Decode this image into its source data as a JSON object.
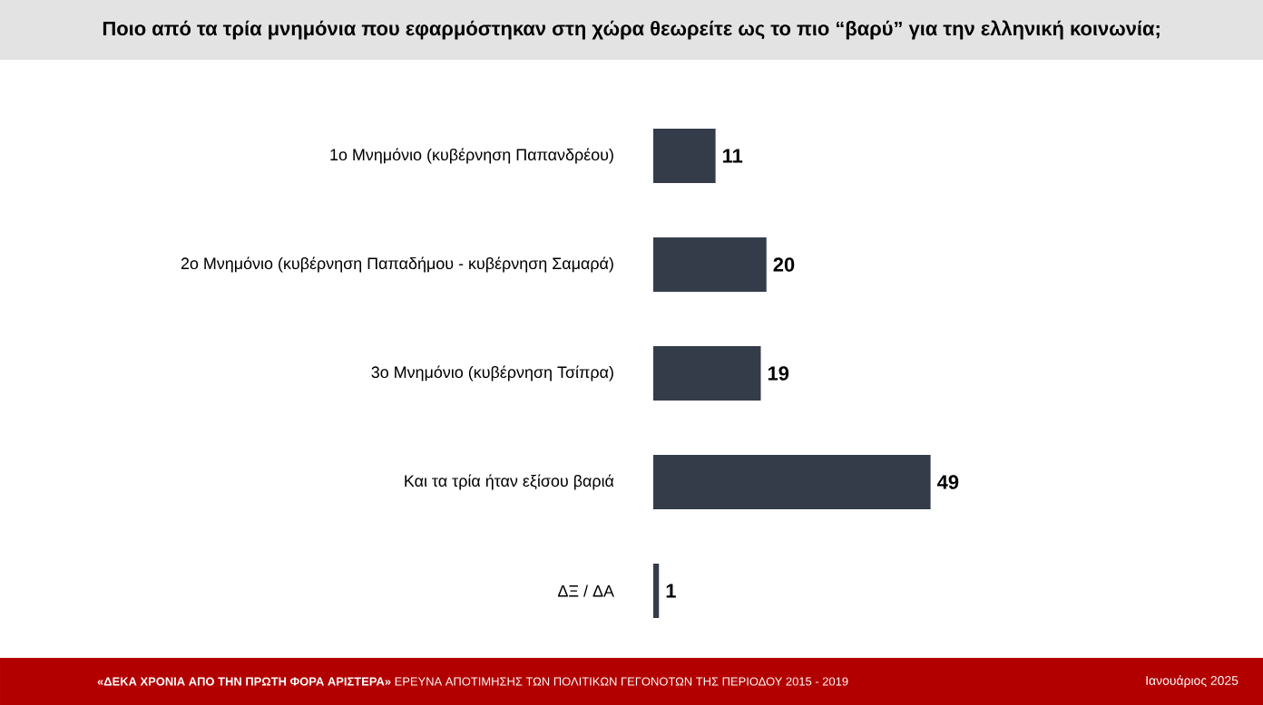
{
  "chart_data": {
    "type": "bar",
    "orientation": "horizontal",
    "title": "Ποιο από τα τρία μνημόνια που εφαρμόστηκαν στη χώρα θεωρείτε ως το πιο “βαρύ” για την ελληνική κοινωνία;",
    "categories": [
      "1ο Μνημόνιο (κυβέρνηση Παπανδρέου)",
      "2ο Μνημόνιο (κυβέρνηση Παπαδήμου - κυβέρνηση Σαμαρά)",
      "3ο Μνημόνιο (κυβέρνηση Τσίπρα)",
      "Και τα τρία ήταν εξίσου βαριά",
      "ΔΞ / ΔΑ"
    ],
    "values": [
      11,
      20,
      19,
      49,
      1
    ],
    "color": "#343c4a",
    "data_labels": true,
    "annotations": [
      "**«ΔΕΚΑ ΧΡΟΝΙΑ ΑΠΟ ΤΗΝ ΠΡΩΤΗ ΦΟΡΑ ΑΡΙΣΤΕΡΑ»** ΕΡΕΥΝΑ ΑΠΟΤΙΜΗΣΗΣ ΤΩΝ ΠΟΛΙΤΙΚΩΝ ΓΕΓΟΝΟΤΩΝ ΤΗΣ ΠΕΡΙΟΔΟΥ 2015 - 2019",
      "Ιανουάριος 2025"
    ]
  }
}
